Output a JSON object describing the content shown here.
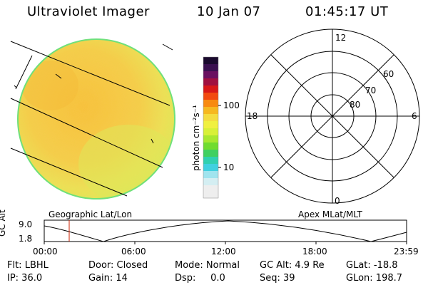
{
  "header": {
    "instrument": "Ultraviolet Imager",
    "date": "10 Jan 07",
    "time": "01:45:17 UT"
  },
  "colorbar": {
    "unit_label": "photon cm⁻²s⁻¹",
    "ticks": [
      "100",
      "10"
    ]
  },
  "panels": {
    "left_caption": "Geographic Lat/Lon",
    "right_caption": "Apex MLat/MLT"
  },
  "polar": {
    "mlt_labels": {
      "top": "12",
      "left": "18",
      "right": "6",
      "bottom": "0"
    },
    "lat_labels": [
      "60",
      "70",
      "80"
    ]
  },
  "altitude_plot": {
    "ylabel": "GC Alt",
    "y_ticks": [
      "9.0",
      "1.8"
    ],
    "x_ticks": [
      "00:00",
      "06:00",
      "12:00",
      "18:00",
      "23:59"
    ],
    "marker_color": "#cc2200"
  },
  "footer": {
    "row1": {
      "flt": "Flt: LBHL",
      "door": "Door: Closed",
      "mode": "Mode: Normal",
      "gcalt": "GC Alt: 4.9 Re",
      "glat": "GLat: -18.8"
    },
    "row2": {
      "ip": "IP: 36.0",
      "gain": "Gain: 14",
      "dsp": "Dsp:     0.0",
      "seq": "Seq: 39",
      "glon": "GLon: 198.7"
    }
  }
}
